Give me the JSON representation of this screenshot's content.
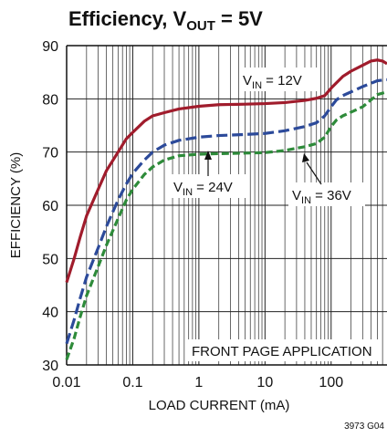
{
  "chart_data": {
    "type": "line",
    "title": {
      "main": "Efficiency, V",
      "sub": "OUT",
      "rest": " = 5V"
    },
    "xlabel": "LOAD CURRENT (mA)",
    "ylabel": "EFFICIENCY (%)",
    "x_scale": "log",
    "xlim": [
      0.01,
      700
    ],
    "ylim": [
      30,
      90
    ],
    "x_ticks": [
      {
        "value": 0.01,
        "label": "0.01"
      },
      {
        "value": 0.1,
        "label": "0.1"
      },
      {
        "value": 1,
        "label": "1"
      },
      {
        "value": 10,
        "label": "10"
      },
      {
        "value": 100,
        "label": "100"
      }
    ],
    "y_ticks": [
      {
        "value": 30,
        "label": "30"
      },
      {
        "value": 40,
        "label": "40"
      },
      {
        "value": 50,
        "label": "50"
      },
      {
        "value": 60,
        "label": "60"
      },
      {
        "value": 70,
        "label": "70"
      },
      {
        "value": 80,
        "label": "80"
      },
      {
        "value": 90,
        "label": "90"
      }
    ],
    "grid": true,
    "series": [
      {
        "name": "V_IN = 12V",
        "color": "#a01c2c",
        "style": "solid",
        "points": [
          [
            0.01,
            45.5
          ],
          [
            0.013,
            50
          ],
          [
            0.016,
            54
          ],
          [
            0.02,
            58
          ],
          [
            0.03,
            63
          ],
          [
            0.04,
            66.5
          ],
          [
            0.06,
            70
          ],
          [
            0.08,
            72.5
          ],
          [
            0.1,
            73.7
          ],
          [
            0.15,
            75.8
          ],
          [
            0.2,
            76.8
          ],
          [
            0.3,
            77.4
          ],
          [
            0.5,
            78.1
          ],
          [
            1,
            78.6
          ],
          [
            2,
            78.9
          ],
          [
            5,
            79.0
          ],
          [
            10,
            79.1
          ],
          [
            20,
            79.3
          ],
          [
            40,
            79.7
          ],
          [
            60,
            80.1
          ],
          [
            80,
            80.6
          ],
          [
            100,
            82.0
          ],
          [
            120,
            83.0
          ],
          [
            150,
            84.2
          ],
          [
            200,
            85.2
          ],
          [
            300,
            86.3
          ],
          [
            400,
            87.1
          ],
          [
            500,
            87.3
          ],
          [
            600,
            87.1
          ],
          [
            700,
            86.6
          ]
        ]
      },
      {
        "name": "V_IN = 24V",
        "color": "#2c4a9a",
        "style": "dashed",
        "points": [
          [
            0.01,
            34
          ],
          [
            0.013,
            38.5
          ],
          [
            0.016,
            42.5
          ],
          [
            0.02,
            46.5
          ],
          [
            0.03,
            52
          ],
          [
            0.04,
            56
          ],
          [
            0.06,
            61
          ],
          [
            0.08,
            64
          ],
          [
            0.1,
            66
          ],
          [
            0.15,
            68.5
          ],
          [
            0.2,
            70
          ],
          [
            0.3,
            71.3
          ],
          [
            0.5,
            72.2
          ],
          [
            1,
            72.8
          ],
          [
            2,
            73.1
          ],
          [
            5,
            73.3
          ],
          [
            10,
            73.5
          ],
          [
            20,
            74.0
          ],
          [
            40,
            74.8
          ],
          [
            60,
            75.5
          ],
          [
            80,
            76.8
          ],
          [
            100,
            78.5
          ],
          [
            120,
            79.8
          ],
          [
            150,
            80.6
          ],
          [
            200,
            81.3
          ],
          [
            300,
            82.3
          ],
          [
            500,
            83.4
          ],
          [
            700,
            83.6
          ]
        ]
      },
      {
        "name": "V_IN = 36V",
        "color": "#2e8b3a",
        "style": "dashed",
        "points": [
          [
            0.01,
            31
          ],
          [
            0.013,
            35
          ],
          [
            0.016,
            39
          ],
          [
            0.02,
            43
          ],
          [
            0.03,
            48.5
          ],
          [
            0.04,
            52.5
          ],
          [
            0.06,
            57.5
          ],
          [
            0.08,
            61
          ],
          [
            0.1,
            63
          ],
          [
            0.15,
            65.8
          ],
          [
            0.2,
            67.2
          ],
          [
            0.3,
            68.5
          ],
          [
            0.5,
            69.3
          ],
          [
            1,
            69.6
          ],
          [
            2,
            69.7
          ],
          [
            5,
            69.8
          ],
          [
            10,
            69.9
          ],
          [
            20,
            70.3
          ],
          [
            40,
            71.0
          ],
          [
            60,
            71.6
          ],
          [
            80,
            72.8
          ],
          [
            100,
            74.8
          ],
          [
            120,
            76.0
          ],
          [
            150,
            76.8
          ],
          [
            200,
            77.5
          ],
          [
            300,
            78.5
          ],
          [
            500,
            80.8
          ],
          [
            700,
            81.3
          ]
        ]
      }
    ],
    "annotations": [
      {
        "name": "V_IN = 12V",
        "v": "V",
        "sub": "IN",
        "rest": " = 12V"
      },
      {
        "name": "V_IN = 24V",
        "v": "V",
        "sub": "IN",
        "rest": " = 24V"
      },
      {
        "name": "V_IN = 36V",
        "v": "V",
        "sub": "IN",
        "rest": " = 36V"
      },
      {
        "name": "FRONT PAGE APPLICATION",
        "text": "FRONT PAGE APPLICATION"
      }
    ],
    "figure_code": "3973 G04"
  }
}
